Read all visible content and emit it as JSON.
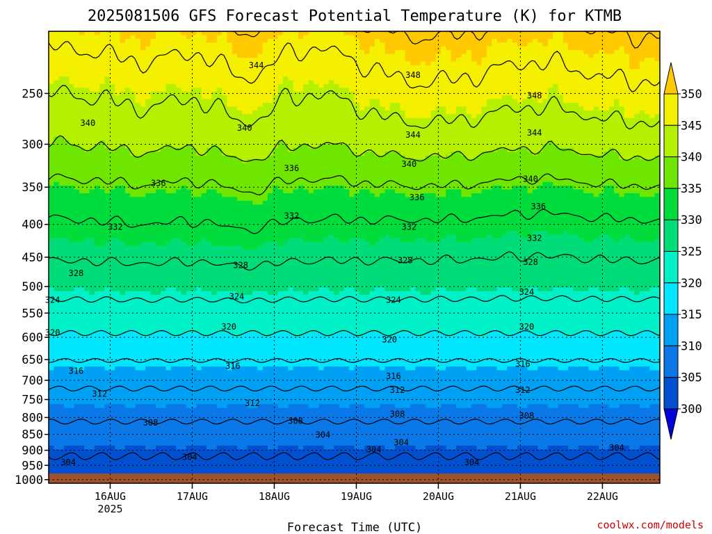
{
  "chart_data": {
    "type": "heatmap",
    "title": "2025081506 GFS Forecast Potential Temperature (K) for KTMB",
    "xlabel": "Forecast Time (UTC)",
    "ylabel": "",
    "y_ticks": [
      "250",
      "300",
      "350",
      "400",
      "450",
      "500",
      "550",
      "600",
      "650",
      "700",
      "750",
      "800",
      "850",
      "900",
      "950",
      "1000"
    ],
    "y_tick_values": [
      250,
      300,
      350,
      400,
      450,
      500,
      550,
      600,
      650,
      700,
      750,
      800,
      850,
      900,
      950,
      1000
    ],
    "x_ticks": [
      "16AUG",
      "17AUG",
      "18AUG",
      "19AUG",
      "20AUG",
      "21AUG",
      "22AUG"
    ],
    "x_year": "2025",
    "x_range_days": [
      15.25,
      22.7
    ],
    "y_range_hpa": [
      200,
      1013
    ],
    "y_scale": "log pressure",
    "grid": "dotted",
    "colorbar": {
      "levels": [
        "300",
        "305",
        "310",
        "315",
        "320",
        "325",
        "330",
        "335",
        "340",
        "345",
        "350"
      ],
      "colors": [
        "#0000d8",
        "#0050d0",
        "#0a78e6",
        "#00a0f5",
        "#00e6ff",
        "#00f0c8",
        "#00dc78",
        "#00dc3c",
        "#6ee600",
        "#b4f000",
        "#f5f000",
        "#ffc800"
      ]
    },
    "contour_interval_K": 4,
    "contour_labels": [
      {
        "text": "344",
        "x": 17.55,
        "p": 226
      },
      {
        "text": "348",
        "x": 19.55,
        "p": 234
      },
      {
        "text": "348",
        "x": 21.1,
        "p": 252
      },
      {
        "text": "340",
        "x": 15.4,
        "p": 278
      },
      {
        "text": "340",
        "x": 17.4,
        "p": 283
      },
      {
        "text": "344",
        "x": 19.55,
        "p": 290
      },
      {
        "text": "344",
        "x": 21.1,
        "p": 288
      },
      {
        "text": "336",
        "x": 16.3,
        "p": 345
      },
      {
        "text": "336",
        "x": 18.0,
        "p": 327
      },
      {
        "text": "340",
        "x": 19.5,
        "p": 322
      },
      {
        "text": "340",
        "x": 21.05,
        "p": 340
      },
      {
        "text": "336",
        "x": 19.6,
        "p": 363
      },
      {
        "text": "336",
        "x": 21.15,
        "p": 375
      },
      {
        "text": "332",
        "x": 15.75,
        "p": 404
      },
      {
        "text": "332",
        "x": 18.0,
        "p": 388
      },
      {
        "text": "332",
        "x": 19.5,
        "p": 404
      },
      {
        "text": "332",
        "x": 21.1,
        "p": 420
      },
      {
        "text": "328",
        "x": 15.25,
        "p": 477
      },
      {
        "text": "328",
        "x": 17.35,
        "p": 463
      },
      {
        "text": "328",
        "x": 19.45,
        "p": 455
      },
      {
        "text": "328",
        "x": 21.05,
        "p": 458
      },
      {
        "text": "324",
        "x": 14.95,
        "p": 525
      },
      {
        "text": "324",
        "x": 17.3,
        "p": 518
      },
      {
        "text": "324",
        "x": 19.3,
        "p": 525
      },
      {
        "text": "324",
        "x": 21.0,
        "p": 510
      },
      {
        "text": "320",
        "x": 14.95,
        "p": 590
      },
      {
        "text": "320",
        "x": 17.2,
        "p": 578
      },
      {
        "text": "320",
        "x": 19.25,
        "p": 605
      },
      {
        "text": "320",
        "x": 21.0,
        "p": 578
      },
      {
        "text": "316",
        "x": 15.25,
        "p": 677
      },
      {
        "text": "316",
        "x": 17.25,
        "p": 665
      },
      {
        "text": "316",
        "x": 19.3,
        "p": 690
      },
      {
        "text": "316",
        "x": 20.95,
        "p": 660
      },
      {
        "text": "312",
        "x": 15.55,
        "p": 735
      },
      {
        "text": "312",
        "x": 17.5,
        "p": 760
      },
      {
        "text": "312",
        "x": 19.35,
        "p": 725
      },
      {
        "text": "312",
        "x": 20.95,
        "p": 725
      },
      {
        "text": "308",
        "x": 16.2,
        "p": 815
      },
      {
        "text": "308",
        "x": 18.05,
        "p": 810
      },
      {
        "text": "308",
        "x": 19.35,
        "p": 790
      },
      {
        "text": "308",
        "x": 21.0,
        "p": 795
      },
      {
        "text": "304",
        "x": 15.15,
        "p": 940
      },
      {
        "text": "304",
        "x": 16.7,
        "p": 922
      },
      {
        "text": "304",
        "x": 18.4,
        "p": 852
      },
      {
        "text": "304",
        "x": 19.05,
        "p": 898
      },
      {
        "text": "304",
        "x": 19.4,
        "p": 875
      },
      {
        "text": "304",
        "x": 20.3,
        "p": 940
      },
      {
        "text": "304",
        "x": 22.15,
        "p": 892
      }
    ]
  },
  "credit": "coolwx.com/models"
}
